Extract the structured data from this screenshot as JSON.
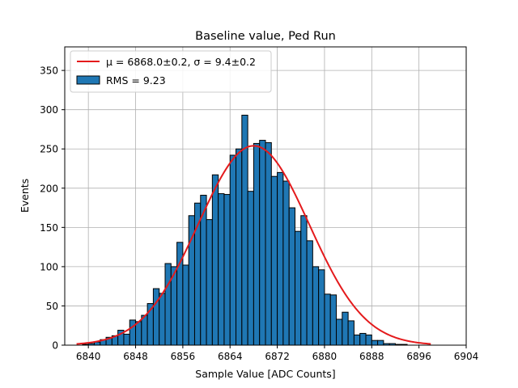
{
  "chart_data": {
    "type": "bar",
    "title": "Baseline value, Ped Run",
    "xlabel": "Sample Value [ADC Counts]",
    "ylabel": "Events",
    "xlim": [
      6836,
      6904
    ],
    "ylim": [
      0,
      380
    ],
    "xticks": [
      6840,
      6848,
      6856,
      6864,
      6872,
      6880,
      6888,
      6896,
      6904
    ],
    "yticks": [
      0,
      50,
      100,
      150,
      200,
      250,
      300,
      350
    ],
    "grid": true,
    "legend_position": "top-left",
    "bin_width": 1,
    "bin_start": 6838,
    "counts": [
      0,
      1,
      2,
      4,
      7,
      10,
      12,
      19,
      14,
      32,
      30,
      38,
      53,
      72,
      66,
      104,
      100,
      131,
      102,
      165,
      181,
      191,
      160,
      217,
      193,
      192,
      242,
      250,
      293,
      196,
      257,
      261,
      258,
      215,
      220,
      209,
      175,
      145,
      165,
      133,
      100,
      96,
      65,
      64,
      33,
      42,
      31,
      13,
      15,
      13,
      6,
      6,
      2,
      2,
      1,
      1
    ],
    "bar_color": "#1f77b4",
    "fit_color": "#e41a1c",
    "fit": {
      "mu": 6868.0,
      "sigma": 9.4,
      "amplitude": 254,
      "x_range": [
        6838,
        6898
      ]
    },
    "legend": [
      {
        "label": "μ = 6868.0±0.2, σ = 9.4±0.2",
        "kind": "line",
        "color": "#e41a1c"
      },
      {
        "label": "RMS = 9.23",
        "kind": "patch",
        "color": "#1f77b4"
      }
    ]
  }
}
